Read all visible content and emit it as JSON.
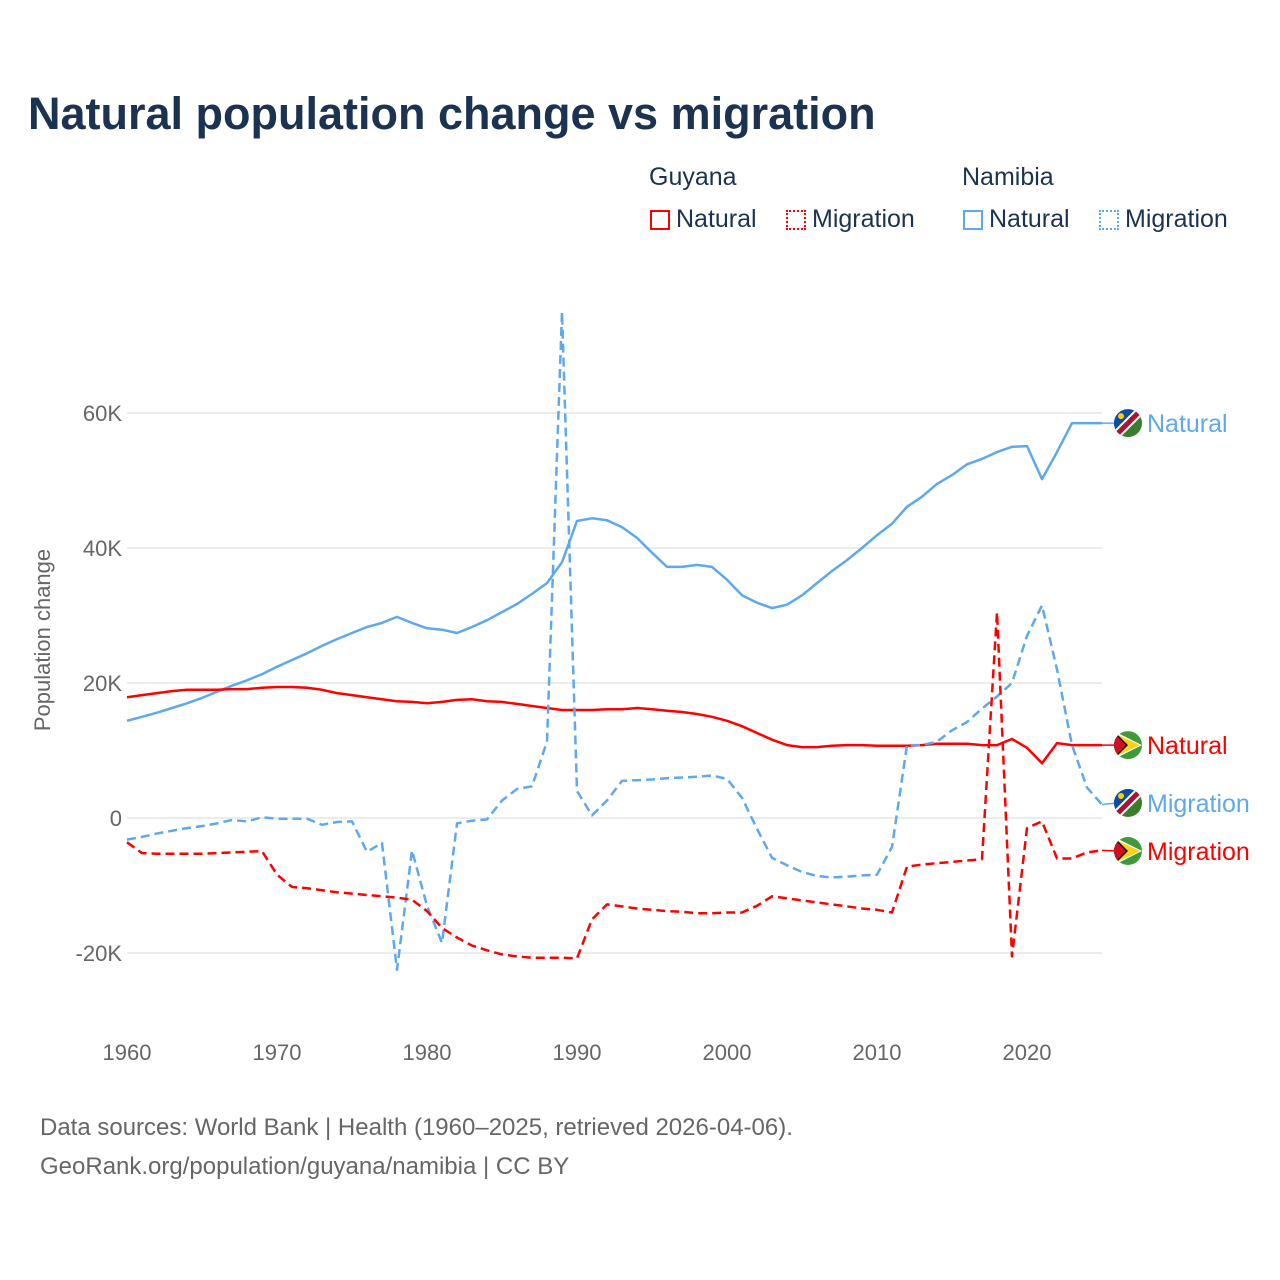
{
  "chart_data": {
    "type": "line",
    "title": "Natural population change vs migration",
    "xlabel": "",
    "ylabel": "Population change",
    "xlim": [
      1960,
      2025
    ],
    "ylim": [
      -30000,
      75000
    ],
    "x_ticks": [
      "1960",
      "1970",
      "1980",
      "1990",
      "2000",
      "2010",
      "2020"
    ],
    "y_ticks": [
      {
        "v": 60000,
        "label": "60K"
      },
      {
        "v": 40000,
        "label": "40K"
      },
      {
        "v": 20000,
        "label": "20K"
      },
      {
        "v": 0,
        "label": "0"
      },
      {
        "v": -20000,
        "label": "-20K"
      }
    ],
    "grid": true,
    "legend": {
      "placement": "top-right",
      "groups": [
        {
          "country": "Guyana",
          "items": [
            "Natural",
            "Migration"
          ]
        },
        {
          "country": "Namibia",
          "items": [
            "Natural",
            "Migration"
          ]
        }
      ]
    },
    "x_start": 1960,
    "series": [
      {
        "country": "Namibia",
        "name": "Natural",
        "color": "#5ea8ec",
        "dash": false,
        "end_label": "Natural",
        "values": [
          14.4,
          15,
          15.6,
          16.3,
          17,
          17.8,
          18.7,
          19.6,
          20.4,
          21.3,
          22.4,
          23.4,
          24.4,
          25.5,
          26.5,
          27.4,
          28.3,
          28.9,
          29.8,
          28.9,
          28.1,
          27.9,
          27.4,
          28.3,
          29.3,
          30.5,
          31.7,
          33.2,
          34.8,
          37.9,
          44,
          44.4,
          44.1,
          43.1,
          41.5,
          39.3,
          37.2,
          37.2,
          37.5,
          37.2,
          35.3,
          33,
          31.9,
          31.1,
          31.6,
          33,
          34.8,
          36.6,
          38.2,
          40,
          41.9,
          43.6,
          46.1,
          47.6,
          49.5,
          50.8,
          52.4,
          53.2,
          54.2,
          55,
          55.1,
          50.2,
          54.2,
          58.5,
          58.5,
          58.5
        ]
      },
      {
        "country": "Guyana",
        "name": "Natural",
        "color": "#ff0000",
        "dash": false,
        "end_label": "Natural",
        "values": [
          17.9,
          18.2,
          18.5,
          18.8,
          19,
          19,
          19,
          19.1,
          19.1,
          19.3,
          19.4,
          19.4,
          19.3,
          19,
          18.5,
          18.2,
          17.9,
          17.6,
          17.3,
          17.2,
          17,
          17.2,
          17.5,
          17.6,
          17.3,
          17.2,
          16.9,
          16.6,
          16.3,
          16,
          16,
          16,
          16.1,
          16.1,
          16.3,
          16.1,
          15.9,
          15.7,
          15.4,
          15,
          14.4,
          13.6,
          12.6,
          11.6,
          10.8,
          10.5,
          10.5,
          10.7,
          10.8,
          10.8,
          10.7,
          10.7,
          10.7,
          10.8,
          11,
          11,
          11,
          10.8,
          10.8,
          11.7,
          10.4,
          8.1,
          11.1,
          10.8,
          10.8,
          10.8
        ]
      },
      {
        "country": "Namibia",
        "name": "Migration",
        "color": "#5ea8ec",
        "dash": true,
        "end_label": "Migration",
        "values": [
          -3.2,
          -2.8,
          -2.3,
          -1.9,
          -1.5,
          -1.2,
          -0.8,
          -0.3,
          -0.5,
          0.1,
          -0.1,
          -0.1,
          -0.1,
          -1,
          -0.6,
          -0.5,
          -5,
          -3.7,
          -22.5,
          -4.8,
          -13,
          -18.5,
          -0.8,
          -0.4,
          -0.2,
          2.6,
          4.3,
          4.7,
          11.3,
          75,
          4,
          0.4,
          2.6,
          5.5,
          5.6,
          5.7,
          5.9,
          6,
          6.1,
          6.3,
          5.8,
          3,
          -1.6,
          -5.9,
          -7,
          -8,
          -8.6,
          -8.8,
          -8.7,
          -8.5,
          -8.4,
          -4.3,
          10.8,
          10.8,
          11.3,
          13,
          14.2,
          16.2,
          18,
          20,
          27,
          31.5,
          22,
          10.8,
          4.5,
          2
        ]
      },
      {
        "country": "Guyana",
        "name": "Migration",
        "color": "#ff0000",
        "dash": true,
        "end_label": "Migration",
        "values": [
          -3.6,
          -5.2,
          -5.3,
          -5.3,
          -5.3,
          -5.3,
          -5.2,
          -5.1,
          -5,
          -4.9,
          -8.4,
          -10.2,
          -10.4,
          -10.7,
          -11,
          -11.2,
          -11.4,
          -11.6,
          -11.8,
          -12.1,
          -13.8,
          -16.3,
          -17.7,
          -18.9,
          -19.6,
          -20.2,
          -20.5,
          -20.7,
          -20.7,
          -20.7,
          -20.8,
          -15,
          -12.8,
          -13.1,
          -13.4,
          -13.6,
          -13.8,
          -13.9,
          -14.1,
          -14.1,
          -14,
          -14,
          -13,
          -11.6,
          -11.9,
          -12.2,
          -12.5,
          -12.8,
          -13.1,
          -13.4,
          -13.6,
          -14,
          -7.2,
          -6.9,
          -6.7,
          -6.5,
          -6.3,
          -6.1,
          30.5,
          -20.5,
          -1.5,
          -0.5,
          -6,
          -6,
          -5.1,
          -4.8
        ]
      }
    ],
    "value_unit": "thousands"
  },
  "footer": {
    "line1": "Data sources: World Bank | Health (1960–2025, retrieved 2026-04-06).",
    "line2": "GeoRank.org/population/guyana/namibia | CC BY"
  }
}
